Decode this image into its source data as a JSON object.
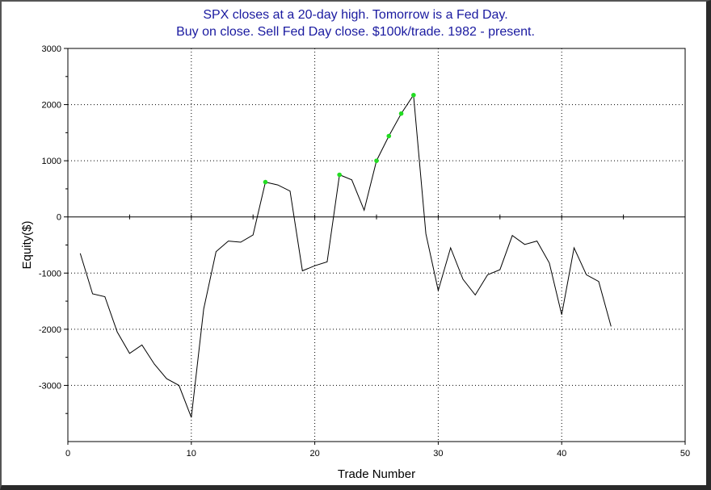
{
  "chart_data": {
    "type": "line",
    "title": "SPX closes at a 20-day high. Tomorrow is a Fed Day.",
    "subtitle": "Buy on close. Sell Fed Day close. $100k/trade. 1982 - present.",
    "xlabel": "Trade Number",
    "ylabel": "Equity($)",
    "xlim": [
      0,
      50
    ],
    "ylim": [
      -4000,
      3000
    ],
    "xticks": [
      0,
      10,
      20,
      30,
      40,
      50
    ],
    "yticks": [
      -3000,
      -2000,
      -1000,
      0,
      1000,
      2000,
      3000
    ],
    "grid": true,
    "line_color": "#000000",
    "marker_color": "#22dd22",
    "x": [
      1,
      2,
      3,
      4,
      5,
      6,
      7,
      8,
      9,
      10,
      11,
      12,
      13,
      14,
      15,
      16,
      17,
      18,
      19,
      20,
      21,
      22,
      23,
      24,
      25,
      26,
      27,
      28,
      29,
      30,
      31,
      32,
      33,
      34,
      35,
      36,
      37,
      38,
      39,
      40,
      41,
      42,
      43,
      44
    ],
    "y": [
      -650,
      -1370,
      -1420,
      -2050,
      -2430,
      -2280,
      -2620,
      -2880,
      -3000,
      -3570,
      -1640,
      -620,
      -430,
      -450,
      -320,
      620,
      570,
      460,
      -960,
      -870,
      -800,
      750,
      660,
      120,
      1000,
      1440,
      1840,
      2170,
      -300,
      -1310,
      -550,
      -1110,
      -1390,
      -1030,
      -940,
      -330,
      -490,
      -430,
      -820,
      -1740,
      -550,
      -1030,
      -1150,
      -1950
    ],
    "highlight_x": [
      16,
      22,
      25,
      26,
      27,
      28
    ]
  }
}
